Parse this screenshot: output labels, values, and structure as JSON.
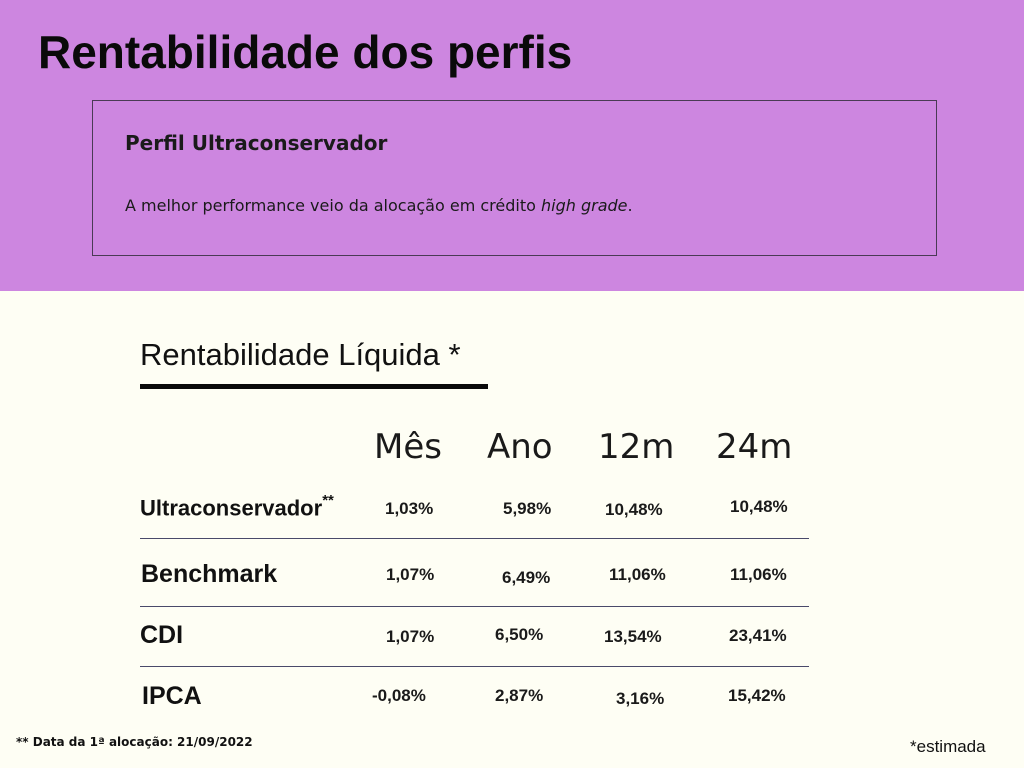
{
  "page": {
    "title": "Rentabilidade dos perfis"
  },
  "profile": {
    "name": "Perfil Ultraconservador",
    "description_prefix": "A melhor performance veio da alocação em crédito ",
    "description_emphasis": "high grade",
    "description_suffix": "."
  },
  "section": {
    "title": "Rentabilidade Líquida *"
  },
  "table": {
    "headers": [
      "Mês",
      "Ano",
      "12m",
      "24m"
    ],
    "rows": [
      {
        "label": "Ultraconservador",
        "marker": "**",
        "values": [
          "1,03%",
          "5,98%",
          "10,48%",
          "10,48%"
        ]
      },
      {
        "label": "Benchmark",
        "marker": "",
        "values": [
          "1,07%",
          "6,49%",
          "11,06%",
          "11,06%"
        ]
      },
      {
        "label": "CDI",
        "marker": "",
        "values": [
          "1,07%",
          "6,50%",
          "13,54%",
          "23,41%"
        ]
      },
      {
        "label": "IPCA",
        "marker": "",
        "values": [
          "-0,08%",
          "2,87%",
          "3,16%",
          "15,42%"
        ]
      }
    ]
  },
  "footnotes": {
    "allocation_date": "**  Data da 1ª alocação: 21/09/2022",
    "estimate": "*estimada"
  },
  "colors": {
    "header_band": "#cd86e0",
    "page_background": "#fefef4"
  }
}
